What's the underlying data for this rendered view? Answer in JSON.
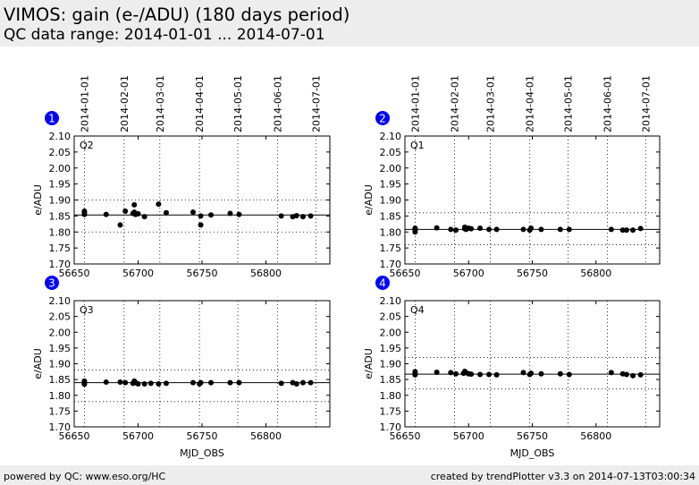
{
  "header": {
    "title": "VIMOS: gain (e-/ADU) (180 days period)",
    "subtitle": "QC data range: 2014-01-01 ... 2014-07-01"
  },
  "footer": {
    "left": "powered by QC: www.eso.org/HC",
    "right": "created by trendPlotter v3.3 on 2014-07-13T03:00:34"
  },
  "colors": {
    "header_bg": "#ededed",
    "badge": "#0000ff",
    "points": "#000000"
  },
  "chart_data": [
    {
      "type": "scatter",
      "panel_number": "1",
      "label": "Q2",
      "xlabel": "",
      "ylabel": "e/ADU",
      "xlim": [
        56650,
        56850
      ],
      "ylim": [
        1.7,
        2.1
      ],
      "xticks": [
        "56650",
        "56700",
        "56750",
        "56800"
      ],
      "yticks": [
        "1.70",
        "1.75",
        "1.80",
        "1.85",
        "1.90",
        "1.95",
        "2.00",
        "2.05",
        "2.10"
      ],
      "date_ticks": [
        "2014-01-01",
        "2014-02-01",
        "2014-03-01",
        "2014-04-01",
        "2014-05-01",
        "2014-06-01",
        "2014-07-01"
      ],
      "date_tick_mjd": [
        56658,
        56689,
        56717,
        56748,
        56778,
        56809,
        56839
      ],
      "mean": 1.853,
      "band": [
        1.8,
        1.9
      ],
      "points": {
        "x": [
          56658,
          56658,
          56658,
          56675,
          56686,
          56690,
          56696,
          56697,
          56697,
          56698,
          56700,
          56705,
          56716,
          56722,
          56743,
          56749,
          56749,
          56757,
          56772,
          56779,
          56812,
          56821,
          56824,
          56829,
          56835
        ],
        "y": [
          1.855,
          1.86,
          1.865,
          1.855,
          1.822,
          1.865,
          1.858,
          1.862,
          1.885,
          1.855,
          1.857,
          1.848,
          1.887,
          1.86,
          1.862,
          1.822,
          1.85,
          1.853,
          1.858,
          1.855,
          1.85,
          1.848,
          1.851,
          1.848,
          1.85
        ]
      }
    },
    {
      "type": "scatter",
      "panel_number": "2",
      "label": "Q1",
      "xlabel": "",
      "ylabel": "e/ADU",
      "xlim": [
        56650,
        56850
      ],
      "ylim": [
        1.7,
        2.1
      ],
      "xticks": [
        "56650",
        "56700",
        "56750",
        "56800"
      ],
      "yticks": [
        "1.70",
        "1.75",
        "1.80",
        "1.85",
        "1.90",
        "1.95",
        "2.00",
        "2.05",
        "2.10"
      ],
      "date_ticks": [
        "2014-01-01",
        "2014-02-01",
        "2014-03-01",
        "2014-04-01",
        "2014-05-01",
        "2014-06-01",
        "2014-07-01"
      ],
      "date_tick_mjd": [
        56658,
        56689,
        56717,
        56748,
        56778,
        56809,
        56839
      ],
      "mean": 1.808,
      "band": [
        1.76,
        1.86
      ],
      "points": {
        "x": [
          56658,
          56658,
          56658,
          56658,
          56675,
          56686,
          56690,
          56697,
          56697,
          56698,
          56700,
          56702,
          56709,
          56716,
          56722,
          56743,
          56748,
          56749,
          56757,
          56772,
          56779,
          56812,
          56821,
          56824,
          56829,
          56835
        ],
        "y": [
          1.805,
          1.808,
          1.812,
          1.8,
          1.813,
          1.808,
          1.806,
          1.81,
          1.815,
          1.808,
          1.812,
          1.81,
          1.812,
          1.808,
          1.808,
          1.808,
          1.806,
          1.812,
          1.808,
          1.808,
          1.808,
          1.808,
          1.806,
          1.806,
          1.806,
          1.811
        ]
      }
    },
    {
      "type": "scatter",
      "panel_number": "3",
      "label": "Q3",
      "xlabel": "",
      "ylabel": "e/ADU",
      "xlim": [
        56650,
        56850
      ],
      "ylim": [
        1.7,
        2.1
      ],
      "xticks": [
        "56650",
        "56700",
        "56750",
        "56800"
      ],
      "yticks": [
        "1.70",
        "1.75",
        "1.80",
        "1.85",
        "1.90",
        "1.95",
        "2.00",
        "2.05",
        "2.10"
      ],
      "mean": 1.84,
      "band": [
        1.78,
        1.88
      ],
      "points": {
        "x": [
          56658,
          56658,
          56658,
          56675,
          56686,
          56690,
          56696,
          56697,
          56698,
          56700,
          56705,
          56710,
          56716,
          56722,
          56743,
          56748,
          56749,
          56757,
          56772,
          56779,
          56812,
          56821,
          56824,
          56829,
          56835
        ],
        "y": [
          1.835,
          1.84,
          1.845,
          1.842,
          1.842,
          1.84,
          1.838,
          1.845,
          1.84,
          1.836,
          1.836,
          1.838,
          1.836,
          1.838,
          1.84,
          1.836,
          1.84,
          1.84,
          1.84,
          1.84,
          1.838,
          1.84,
          1.836,
          1.84,
          1.84
        ]
      }
    },
    {
      "type": "scatter",
      "panel_number": "4",
      "label": "Q4",
      "xlabel": "MJD_OBS",
      "ylabel": "e/ADU",
      "xlim": [
        56650,
        56850
      ],
      "ylim": [
        1.7,
        2.1
      ],
      "xticks": [
        "56650",
        "56700",
        "56750",
        "56800"
      ],
      "yticks": [
        "1.70",
        "1.75",
        "1.80",
        "1.85",
        "1.90",
        "1.95",
        "2.00",
        "2.05",
        "2.10"
      ],
      "mean": 1.867,
      "band": [
        1.82,
        1.92
      ],
      "points": {
        "x": [
          56658,
          56658,
          56658,
          56675,
          56686,
          56690,
          56696,
          56697,
          56698,
          56700,
          56702,
          56709,
          56716,
          56722,
          56743,
          56748,
          56749,
          56757,
          56772,
          56779,
          56812,
          56821,
          56824,
          56829,
          56835
        ],
        "y": [
          1.865,
          1.87,
          1.875,
          1.873,
          1.872,
          1.868,
          1.87,
          1.876,
          1.872,
          1.868,
          1.867,
          1.866,
          1.866,
          1.865,
          1.872,
          1.866,
          1.87,
          1.868,
          1.868,
          1.866,
          1.872,
          1.868,
          1.866,
          1.862,
          1.865
        ]
      }
    }
  ],
  "xlabel_bottom_left": "MJD_OBS"
}
